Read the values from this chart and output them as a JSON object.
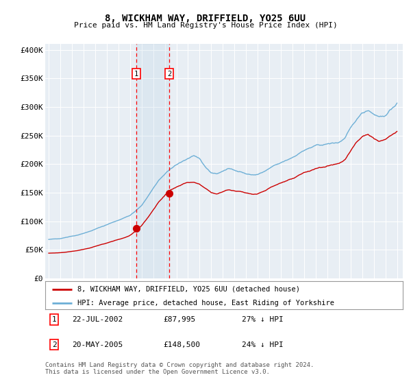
{
  "title": "8, WICKHAM WAY, DRIFFIELD, YO25 6UU",
  "subtitle": "Price paid vs. HM Land Registry's House Price Index (HPI)",
  "hpi_color": "#6dafd6",
  "price_color": "#cc0000",
  "bg_color": "#e8eef4",
  "legend_house": "8, WICKHAM WAY, DRIFFIELD, YO25 6UU (detached house)",
  "legend_hpi": "HPI: Average price, detached house, East Riding of Yorkshire",
  "transaction1_date": "22-JUL-2002",
  "transaction1_price": "£87,995",
  "transaction1_hpi": "27% ↓ HPI",
  "transaction2_date": "20-MAY-2005",
  "transaction2_price": "£148,500",
  "transaction2_hpi": "24% ↓ HPI",
  "footer": "Contains HM Land Registry data © Crown copyright and database right 2024.\nThis data is licensed under the Open Government Licence v3.0.",
  "transaction1_x": 2002.55,
  "transaction2_x": 2005.38,
  "transaction1_y": 87995,
  "transaction2_y": 148500,
  "ylim": [
    0,
    410000
  ],
  "yticks": [
    0,
    50000,
    100000,
    150000,
    200000,
    250000,
    300000,
    350000,
    400000
  ],
  "ytick_labels": [
    "£0",
    "£50K",
    "£100K",
    "£150K",
    "£200K",
    "£250K",
    "£300K",
    "£350K",
    "£400K"
  ],
  "xlim": [
    1994.7,
    2025.5
  ],
  "hpi_yearly": {
    "x": [
      1995.0,
      1995.5,
      1996.0,
      1996.5,
      1997.0,
      1997.5,
      1998.0,
      1998.5,
      1999.0,
      1999.5,
      2000.0,
      2000.5,
      2001.0,
      2001.5,
      2002.0,
      2002.5,
      2003.0,
      2003.5,
      2004.0,
      2004.5,
      2005.0,
      2005.5,
      2006.0,
      2006.5,
      2007.0,
      2007.5,
      2008.0,
      2008.5,
      2009.0,
      2009.5,
      2010.0,
      2010.5,
      2011.0,
      2011.5,
      2012.0,
      2012.5,
      2013.0,
      2013.5,
      2014.0,
      2014.5,
      2015.0,
      2015.5,
      2016.0,
      2016.5,
      2017.0,
      2017.5,
      2018.0,
      2018.5,
      2019.0,
      2019.5,
      2020.0,
      2020.5,
      2021.0,
      2021.5,
      2022.0,
      2022.5,
      2023.0,
      2023.5,
      2024.0,
      2024.5,
      2025.0
    ],
    "y": [
      68000,
      69000,
      70000,
      72000,
      74000,
      76000,
      79000,
      82000,
      86000,
      90000,
      94000,
      98000,
      102000,
      106000,
      110000,
      118000,
      128000,
      142000,
      158000,
      172000,
      182000,
      192000,
      198000,
      205000,
      210000,
      215000,
      208000,
      195000,
      185000,
      183000,
      188000,
      192000,
      190000,
      187000,
      183000,
      181000,
      182000,
      186000,
      192000,
      198000,
      202000,
      207000,
      212000,
      218000,
      224000,
      228000,
      232000,
      234000,
      235000,
      237000,
      238000,
      245000,
      262000,
      278000,
      290000,
      295000,
      288000,
      283000,
      285000,
      295000,
      308000
    ]
  },
  "price_yearly": {
    "x": [
      1995.0,
      1995.5,
      1996.0,
      1996.5,
      1997.0,
      1997.5,
      1998.0,
      1998.5,
      1999.0,
      1999.5,
      2000.0,
      2000.5,
      2001.0,
      2001.5,
      2002.0,
      2002.5,
      2003.0,
      2003.5,
      2004.0,
      2004.5,
      2005.0,
      2005.5,
      2006.0,
      2006.5,
      2007.0,
      2007.5,
      2008.0,
      2008.5,
      2009.0,
      2009.5,
      2010.0,
      2010.5,
      2011.0,
      2011.5,
      2012.0,
      2012.5,
      2013.0,
      2013.5,
      2014.0,
      2014.5,
      2015.0,
      2015.5,
      2016.0,
      2016.5,
      2017.0,
      2017.5,
      2018.0,
      2018.5,
      2019.0,
      2019.5,
      2020.0,
      2020.5,
      2021.0,
      2021.5,
      2022.0,
      2022.5,
      2023.0,
      2023.5,
      2024.0,
      2024.5,
      2025.0
    ],
    "y": [
      44000,
      44500,
      45000,
      46000,
      47500,
      49000,
      51000,
      53000,
      56000,
      59000,
      62000,
      65000,
      68000,
      71000,
      75000,
      83000,
      92000,
      105000,
      120000,
      135000,
      145000,
      155000,
      160000,
      165000,
      168000,
      168000,
      165000,
      158000,
      150000,
      148000,
      152000,
      155000,
      154000,
      152000,
      149000,
      147000,
      148000,
      152000,
      158000,
      163000,
      167000,
      170000,
      175000,
      180000,
      185000,
      188000,
      192000,
      194000,
      196000,
      198000,
      200000,
      207000,
      222000,
      238000,
      248000,
      253000,
      245000,
      240000,
      242000,
      250000,
      258000
    ]
  }
}
